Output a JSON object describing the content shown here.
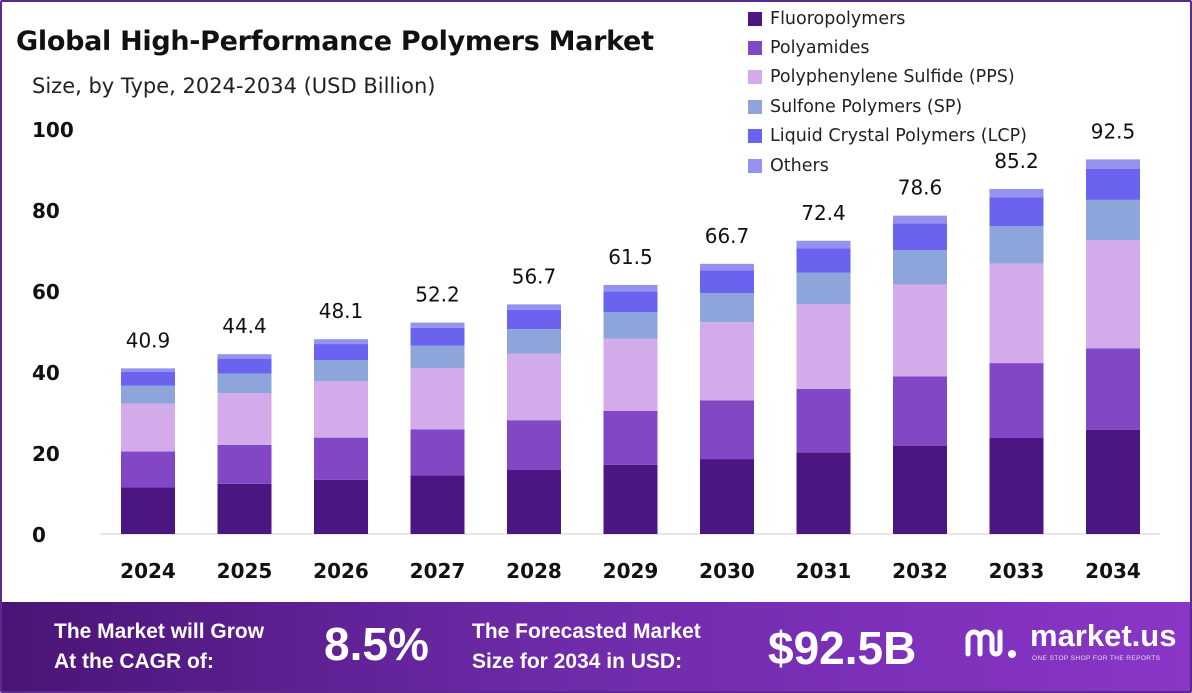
{
  "chart_data": {
    "type": "bar",
    "stacked": true,
    "title": "Global High-Performance Polymers Market",
    "subtitle": "Size, by Type, 2024-2034 (USD Billion)",
    "xlabel": "",
    "ylabel": "",
    "ylim": [
      0,
      100
    ],
    "yticks": [
      "0",
      "20",
      "40",
      "60",
      "80",
      "100"
    ],
    "grid": false,
    "legend_position": "top-right",
    "categories": [
      "2024",
      "2025",
      "2026",
      "2027",
      "2028",
      "2029",
      "2030",
      "2031",
      "2032",
      "2033",
      "2034"
    ],
    "totals": [
      40.9,
      44.4,
      48.1,
      52.2,
      56.7,
      61.5,
      66.7,
      72.4,
      78.6,
      85.2,
      92.5
    ],
    "total_labels": [
      "40.9",
      "44.4",
      "48.1",
      "52.2",
      "56.7",
      "61.5",
      "66.7",
      "72.4",
      "78.6",
      "85.2",
      "92.5"
    ],
    "series": [
      {
        "name": "Fluoropolymers",
        "color": "#4b1682",
        "values": [
          11.5,
          12.4,
          13.4,
          14.5,
          15.8,
          17.1,
          18.5,
          20.1,
          21.8,
          23.7,
          25.7
        ]
      },
      {
        "name": "Polyamides",
        "color": "#8147c4",
        "values": [
          8.9,
          9.6,
          10.4,
          11.3,
          12.3,
          13.3,
          14.5,
          15.7,
          17.1,
          18.5,
          20.1
        ]
      },
      {
        "name": "Polyphenylene Sulfide (PPS)",
        "color": "#d3aaea",
        "values": [
          11.8,
          12.8,
          13.9,
          15.1,
          16.4,
          17.8,
          19.3,
          20.9,
          22.7,
          24.6,
          26.7
        ]
      },
      {
        "name": "Sulfone Polymers (SP)",
        "color": "#8ea5dc",
        "values": [
          4.4,
          4.8,
          5.2,
          5.6,
          6.1,
          6.6,
          7.2,
          7.8,
          8.5,
          9.2,
          10.0
        ]
      },
      {
        "name": "Liquid Crystal Polymers (LCP)",
        "color": "#6a63f0",
        "values": [
          3.4,
          3.7,
          4.0,
          4.4,
          4.7,
          5.1,
          5.6,
          6.0,
          6.6,
          7.1,
          7.7
        ]
      },
      {
        "name": "Others",
        "color": "#9591ee",
        "values": [
          0.9,
          1.1,
          1.2,
          1.3,
          1.4,
          1.6,
          1.6,
          1.9,
          1.9,
          2.1,
          2.3
        ]
      }
    ]
  },
  "footer": {
    "cagr_line1": "The Market will Grow",
    "cagr_line2": "At the CAGR of:",
    "cagr_value": "8.5%",
    "forecast_line1": "The Forecasted Market",
    "forecast_line2": "Size for 2034 in USD:",
    "forecast_value": "$92.5B",
    "brand_name": "market.us",
    "brand_tagline": "ONE STOP SHOP FOR THE REPORTS"
  }
}
